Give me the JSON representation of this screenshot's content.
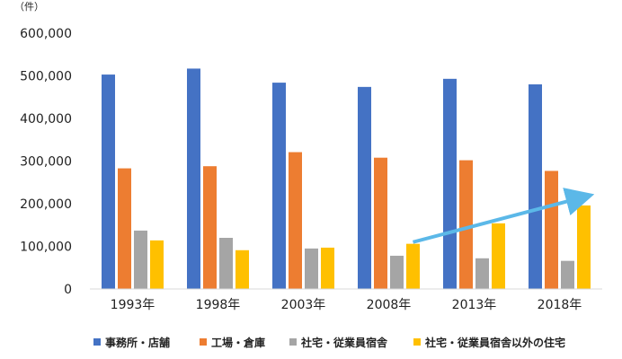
{
  "chart_data": {
    "type": "bar",
    "unit_label": "（件）",
    "categories": [
      "1993年",
      "1998年",
      "2003年",
      "2008年",
      "2013年",
      "2018年"
    ],
    "series": [
      {
        "name": "事務所・店舗",
        "color": "#4472C4",
        "values": [
          503000,
          517000,
          484000,
          474000,
          493000,
          480000
        ]
      },
      {
        "name": "工場・倉庫",
        "color": "#ED7D31",
        "values": [
          283000,
          288000,
          321000,
          308000,
          302000,
          277000
        ]
      },
      {
        "name": "社宅・従業員宿舎",
        "color": "#A5A5A5",
        "values": [
          137000,
          120000,
          95000,
          78000,
          72000,
          66000
        ]
      },
      {
        "name": "社宅・従業員宿舎以外の住宅",
        "color": "#FFC000",
        "values": [
          114000,
          91000,
          97000,
          106000,
          154000,
          196000
        ]
      }
    ],
    "yticks": [
      "0",
      "100,000",
      "200,000",
      "300,000",
      "400,000",
      "500,000",
      "600,000"
    ],
    "ylim": [
      0,
      600000
    ],
    "grid": false,
    "legend_position": "bottom",
    "annotation": {
      "type": "trend-arrow",
      "color": "#5BB8E8",
      "from_category": "2008年",
      "to_category": "2018年",
      "from_value": 110000,
      "to_value": 218000
    }
  }
}
